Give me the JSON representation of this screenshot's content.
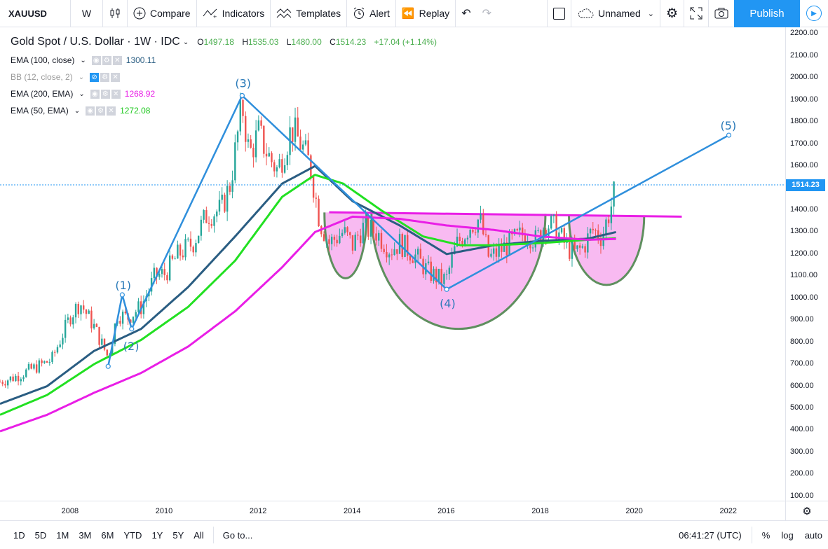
{
  "toolbar": {
    "symbol": "XAUUSD",
    "interval": "W",
    "compare": "Compare",
    "indicators": "Indicators",
    "templates": "Templates",
    "alert": "Alert",
    "replay": "Replay",
    "layout_name": "Unnamed",
    "publish": "Publish"
  },
  "legend": {
    "title": "Gold Spot / U.S. Dollar · 1W · IDC",
    "open_label": "O",
    "open": "1497.18",
    "high_label": "H",
    "high": "1535.03",
    "low_label": "L",
    "low": "1480.00",
    "close_label": "C",
    "close": "1514.23",
    "change": "+17.04 (+1.14%)",
    "indicators": [
      {
        "name": "EMA (100, close)",
        "value": "1300.11",
        "color": "#2a5d82"
      },
      {
        "name": "BB (12, close, 2)",
        "value": "",
        "color": "#999999"
      },
      {
        "name": "EMA (200, EMA)",
        "value": "1268.92",
        "color": "#e91ee6"
      },
      {
        "name": "EMA (50, EMA)",
        "value": "1272.08",
        "color": "#22c922"
      }
    ]
  },
  "price_axis": {
    "labels": [
      "2200.00",
      "2100.00",
      "2000.00",
      "1900.00",
      "1800.00",
      "1700.00",
      "1600.00",
      "1500.00",
      "1400.00",
      "1300.00",
      "1200.00",
      "1100.00",
      "1000.00",
      "900.00",
      "800.00",
      "700.00",
      "600.00",
      "500.00",
      "400.00",
      "300.00",
      "200.00",
      "100.00"
    ],
    "last_price": "1514.23"
  },
  "time_axis": {
    "labels": [
      "2008",
      "2010",
      "2012",
      "2014",
      "2016",
      "2018",
      "2020",
      "2022"
    ]
  },
  "bottom_bar": {
    "ranges": [
      "1D",
      "5D",
      "1M",
      "3M",
      "6M",
      "YTD",
      "1Y",
      "5Y",
      "All"
    ],
    "goto": "Go to...",
    "clock": "06:41:27 (UTC)",
    "percent": "%",
    "log": "log",
    "auto": "auto"
  },
  "wave_labels": [
    "(1)",
    "(2)",
    "(3)",
    "(4)",
    "(5)"
  ],
  "chart_data": {
    "type": "line",
    "title": "Gold Spot / U.S. Dollar · 1W · IDC",
    "xlabel": "",
    "ylabel": "",
    "xlim": [
      2006.5,
      2023.2
    ],
    "ylim": [
      80,
      2230
    ],
    "price_series": {
      "x": [
        2006.5,
        2006.8,
        2007.0,
        2007.3,
        2007.6,
        2007.8,
        2008.0,
        2008.2,
        2008.5,
        2008.8,
        2009.0,
        2009.2,
        2009.5,
        2009.8,
        2010.0,
        2010.3,
        2010.6,
        2010.9,
        2011.2,
        2011.4,
        2011.65,
        2011.8,
        2012.0,
        2012.2,
        2012.4,
        2012.7,
        2012.9,
        2013.1,
        2013.3,
        2013.5,
        2013.8,
        2014.0,
        2014.2,
        2014.5,
        2014.8,
        2015.0,
        2015.3,
        2015.6,
        2015.9,
        2016.0,
        2016.2,
        2016.5,
        2016.7,
        2016.9,
        2017.1,
        2017.4,
        2017.7,
        2017.9,
        2018.1,
        2018.3,
        2018.5,
        2018.7,
        2018.9,
        2019.1,
        2019.3,
        2019.5,
        2019.6
      ],
      "y": [
        620,
        640,
        660,
        690,
        720,
        820,
        920,
        980,
        870,
        730,
        930,
        910,
        960,
        1100,
        1110,
        1200,
        1250,
        1380,
        1400,
        1520,
        1880,
        1650,
        1750,
        1650,
        1580,
        1770,
        1700,
        1600,
        1350,
        1250,
        1300,
        1240,
        1320,
        1300,
        1220,
        1250,
        1200,
        1120,
        1080,
        1090,
        1240,
        1330,
        1360,
        1180,
        1210,
        1260,
        1300,
        1260,
        1340,
        1320,
        1250,
        1200,
        1230,
        1310,
        1280,
        1420,
        1514
      ]
    },
    "series": [
      {
        "name": "EMA (100, close)",
        "x": [
          2006.5,
          2007.5,
          2008.5,
          2009.5,
          2010.5,
          2011.5,
          2012.5,
          2013.2,
          2014.0,
          2015.0,
          2016.0,
          2017.0,
          2018.0,
          2019.0,
          2019.6
        ],
        "y": [
          520,
          600,
          760,
          860,
          1050,
          1280,
          1520,
          1600,
          1440,
          1330,
          1200,
          1240,
          1260,
          1270,
          1300
        ]
      },
      {
        "name": "EMA (50, EMA)",
        "x": [
          2006.5,
          2007.5,
          2008.5,
          2009.5,
          2010.5,
          2011.5,
          2012.5,
          2013.2,
          2013.8,
          2014.6,
          2015.5,
          2016.3,
          2017.0,
          2018.0,
          2019.0,
          2019.6
        ],
        "y": [
          470,
          560,
          700,
          810,
          960,
          1170,
          1460,
          1560,
          1520,
          1400,
          1280,
          1240,
          1240,
          1250,
          1265,
          1272
        ]
      },
      {
        "name": "EMA (200, EMA)",
        "x": [
          2006.5,
          2007.5,
          2008.5,
          2009.5,
          2010.5,
          2011.5,
          2012.5,
          2013.2,
          2014.0,
          2015.0,
          2016.0,
          2017.0,
          2018.0,
          2019.0,
          2019.6
        ],
        "y": [
          395,
          470,
          570,
          660,
          780,
          940,
          1140,
          1300,
          1370,
          1360,
          1330,
          1310,
          1280,
          1265,
          1269
        ]
      }
    ],
    "elliott_waves": [
      {
        "label": "(1)",
        "x": 2009.1,
        "y": 1015
      },
      {
        "label": "(2)",
        "x": 2009.3,
        "y": 860
      },
      {
        "label": "(3)",
        "x": 2011.65,
        "y": 1920
      },
      {
        "label": "(4)",
        "x": 2016.0,
        "y": 1040
      },
      {
        "label": "(5)",
        "x": 2022.0,
        "y": 1740
      }
    ],
    "wave_start": {
      "x": 2008.8,
      "y": 690
    },
    "neckline": {
      "x": [
        2013.5,
        2021.0
      ],
      "y": [
        1390,
        1370
      ]
    },
    "cups": [
      {
        "x": [
          2013.4,
          2014.3
        ],
        "bottom": 1090
      },
      {
        "x": [
          2014.4,
          2018.1
        ],
        "bottom": 860
      },
      {
        "x": [
          2018.6,
          2020.2
        ],
        "bottom": 1060
      }
    ]
  }
}
